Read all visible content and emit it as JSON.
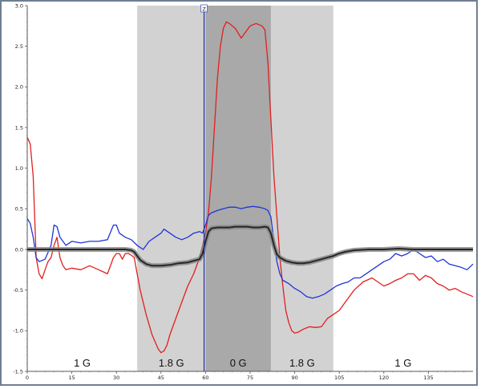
{
  "chart_data": {
    "type": "line",
    "title": "",
    "xlabel": "",
    "ylabel": "",
    "xlim": [
      0,
      150
    ],
    "ylim": [
      -1.5,
      3.0
    ],
    "x_ticks": [
      "0",
      "15",
      "30",
      "45",
      "60",
      "75",
      "90",
      "105",
      "120",
      "135"
    ],
    "y_ticks": [
      "3.0",
      "2.5",
      "2.0",
      "1.5",
      "1.0",
      "0.5",
      "0.0",
      "-0.5",
      "-1.0",
      "-1.5"
    ],
    "cursor": {
      "x": 59.5,
      "label": "Z"
    },
    "phases": [
      {
        "label": "1 G",
        "x_start": 0,
        "x_end": 37,
        "shade": "none"
      },
      {
        "label": "1.8 G",
        "x_start": 37,
        "x_end": 60,
        "shade": "light"
      },
      {
        "label": "0 G",
        "x_start": 60,
        "x_end": 82,
        "shade": "dark"
      },
      {
        "label": "1.8 G",
        "x_start": 82,
        "x_end": 103,
        "shade": "light"
      },
      {
        "label": "1 G",
        "x_start": 103,
        "x_end": 150,
        "shade": "none"
      }
    ],
    "series": [
      {
        "color": "#e21f1f",
        "x": [
          0,
          1,
          2,
          3,
          4,
          5,
          6,
          7,
          8,
          9,
          10,
          11,
          12,
          13,
          15,
          18,
          21,
          24,
          27,
          29,
          30,
          31,
          32,
          33,
          34,
          35,
          36,
          37,
          38,
          40,
          42,
          44,
          45,
          46,
          47,
          48,
          50,
          52,
          54,
          56,
          58,
          59,
          60,
          61,
          62,
          63,
          64,
          65,
          66,
          67,
          68,
          70,
          72,
          74,
          75,
          77,
          79,
          80,
          81,
          82,
          83,
          84,
          85,
          86,
          87,
          88,
          89,
          90,
          91,
          93,
          95,
          97,
          99,
          101,
          103,
          105,
          107,
          110,
          113,
          116,
          118,
          120,
          122,
          124,
          126,
          128,
          130,
          132,
          134,
          136,
          138,
          140,
          142,
          144,
          146,
          148,
          150
        ],
        "values": [
          1.38,
          1.3,
          0.9,
          -0.1,
          -0.3,
          -0.36,
          -0.25,
          -0.15,
          -0.1,
          0.05,
          0.15,
          -0.1,
          -0.2,
          -0.25,
          -0.23,
          -0.25,
          -0.2,
          -0.25,
          -0.3,
          -0.1,
          -0.05,
          -0.05,
          -0.12,
          -0.05,
          -0.05,
          -0.07,
          -0.1,
          -0.3,
          -0.5,
          -0.8,
          -1.05,
          -1.22,
          -1.27,
          -1.25,
          -1.18,
          -1.05,
          -0.85,
          -0.65,
          -0.45,
          -0.3,
          -0.1,
          0.05,
          0.2,
          0.45,
          0.9,
          1.5,
          2.1,
          2.5,
          2.72,
          2.8,
          2.78,
          2.72,
          2.6,
          2.7,
          2.75,
          2.78,
          2.75,
          2.7,
          2.3,
          1.6,
          0.9,
          0.4,
          -0.1,
          -0.45,
          -0.75,
          -0.9,
          -1.0,
          -1.03,
          -1.02,
          -0.98,
          -0.95,
          -0.96,
          -0.95,
          -0.85,
          -0.8,
          -0.75,
          -0.65,
          -0.5,
          -0.4,
          -0.35,
          -0.4,
          -0.45,
          -0.42,
          -0.38,
          -0.35,
          -0.3,
          -0.3,
          -0.38,
          -0.32,
          -0.35,
          -0.42,
          -0.45,
          -0.5,
          -0.48,
          -0.52,
          -0.55,
          -0.58
        ]
      },
      {
        "color": "#1f35d6",
        "x": [
          0,
          1,
          2,
          3,
          4,
          6,
          8,
          9,
          10,
          11,
          12,
          13,
          15,
          18,
          21,
          24,
          27,
          29,
          30,
          31,
          33,
          35,
          37,
          39,
          41,
          43,
          45,
          46,
          48,
          50,
          52,
          54,
          56,
          58,
          59,
          60,
          61,
          62,
          64,
          66,
          68,
          70,
          72,
          74,
          76,
          78,
          80,
          81,
          82,
          83,
          84,
          85,
          86,
          87,
          88,
          90,
          92,
          94,
          96,
          98,
          100,
          102,
          104,
          106,
          108,
          110,
          112,
          114,
          116,
          118,
          120,
          122,
          124,
          126,
          128,
          130,
          132,
          134,
          136,
          138,
          140,
          142,
          144,
          146,
          148,
          150
        ],
        "values": [
          0.38,
          0.32,
          0.15,
          -0.1,
          -0.15,
          -0.12,
          0.05,
          0.3,
          0.28,
          0.15,
          0.1,
          0.05,
          0.1,
          0.08,
          0.1,
          0.1,
          0.12,
          0.3,
          0.3,
          0.2,
          0.15,
          0.12,
          0.05,
          0.0,
          0.1,
          0.15,
          0.2,
          0.25,
          0.2,
          0.15,
          0.12,
          0.15,
          0.2,
          0.22,
          0.2,
          0.3,
          0.42,
          0.45,
          0.48,
          0.5,
          0.52,
          0.52,
          0.5,
          0.52,
          0.53,
          0.52,
          0.5,
          0.48,
          0.4,
          0.1,
          -0.15,
          -0.3,
          -0.38,
          -0.4,
          -0.42,
          -0.48,
          -0.52,
          -0.58,
          -0.6,
          -0.58,
          -0.55,
          -0.5,
          -0.45,
          -0.42,
          -0.4,
          -0.35,
          -0.35,
          -0.3,
          -0.25,
          -0.2,
          -0.15,
          -0.12,
          -0.05,
          -0.08,
          -0.05,
          0.0,
          -0.05,
          -0.1,
          -0.08,
          -0.15,
          -0.12,
          -0.18,
          -0.2,
          -0.22,
          -0.25,
          -0.18
        ]
      },
      {
        "color": "#262626",
        "x": [
          0,
          5,
          10,
          15,
          20,
          25,
          30,
          33,
          35,
          36,
          37,
          38,
          40,
          42,
          45,
          48,
          51,
          54,
          56,
          58,
          59,
          60,
          61,
          62,
          64,
          66,
          68,
          70,
          72,
          74,
          76,
          78,
          80,
          81,
          82,
          83,
          84,
          85,
          87,
          89,
          91,
          93,
          95,
          97,
          99,
          101,
          103,
          105,
          107,
          110,
          115,
          120,
          125,
          130,
          135,
          140,
          145,
          150
        ],
        "values": [
          0.0,
          0.0,
          0.0,
          0.0,
          0.0,
          0.0,
          0.0,
          0.0,
          -0.01,
          -0.03,
          -0.08,
          -0.13,
          -0.18,
          -0.2,
          -0.2,
          -0.19,
          -0.17,
          -0.16,
          -0.14,
          -0.12,
          -0.05,
          0.1,
          0.22,
          0.26,
          0.27,
          0.27,
          0.27,
          0.28,
          0.28,
          0.28,
          0.27,
          0.27,
          0.28,
          0.27,
          0.2,
          0.05,
          -0.06,
          -0.1,
          -0.14,
          -0.16,
          -0.17,
          -0.17,
          -0.16,
          -0.14,
          -0.12,
          -0.1,
          -0.08,
          -0.05,
          -0.03,
          -0.01,
          0.0,
          0.0,
          0.01,
          0.0,
          0.0,
          0.0,
          0.0,
          0.0
        ]
      }
    ]
  }
}
